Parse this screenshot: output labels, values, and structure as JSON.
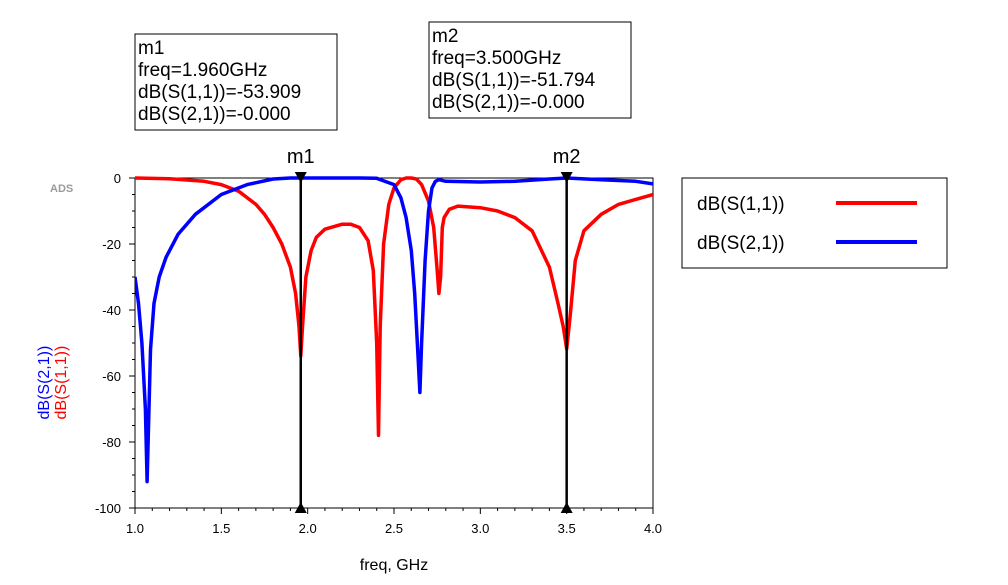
{
  "chart_data": {
    "type": "line",
    "watermark": "ADS",
    "xlabel": "freq, GHz",
    "ylabels": [
      "dB(S(2,1))",
      "dB(S(1,1))"
    ],
    "xlim": [
      1.0,
      4.0
    ],
    "ylim": [
      -100,
      0
    ],
    "x_ticks": [
      "1.0",
      "1.5",
      "2.0",
      "2.5",
      "3.0",
      "3.5",
      "4.0"
    ],
    "y_ticks": [
      "0",
      "-20",
      "-40",
      "-60",
      "-80",
      "-100"
    ],
    "colors": {
      "s11": "#ff0000",
      "s21": "#0000ff"
    },
    "series": [
      {
        "name": "dB(S(1,1))",
        "color": "#ff0000",
        "x": [
          1.0,
          1.2,
          1.4,
          1.5,
          1.6,
          1.7,
          1.75,
          1.8,
          1.85,
          1.9,
          1.93,
          1.95,
          1.96,
          1.97,
          1.99,
          2.02,
          2.05,
          2.1,
          2.2,
          2.25,
          2.3,
          2.35,
          2.38,
          2.4,
          2.41,
          2.42,
          2.44,
          2.47,
          2.5,
          2.54,
          2.57,
          2.6,
          2.63,
          2.66,
          2.7,
          2.73,
          2.75,
          2.76,
          2.77,
          2.78,
          2.79,
          2.82,
          2.87,
          3.0,
          3.1,
          3.2,
          3.3,
          3.4,
          3.45,
          3.48,
          3.5,
          3.52,
          3.55,
          3.6,
          3.7,
          3.8,
          3.9,
          4.0
        ],
        "y": [
          0,
          -0.2,
          -1,
          -2,
          -4,
          -8,
          -11,
          -15,
          -20,
          -27,
          -35,
          -45,
          -53.9,
          -45,
          -30,
          -22,
          -18,
          -15.5,
          -14,
          -14,
          -15,
          -19,
          -28,
          -50,
          -78,
          -45,
          -20,
          -8,
          -3,
          -0.5,
          0,
          0,
          -0.3,
          -2,
          -7,
          -15,
          -28,
          -35,
          -30,
          -15,
          -12,
          -9.5,
          -8.5,
          -9,
          -10,
          -12,
          -16,
          -27,
          -38,
          -45,
          -51.8,
          -42,
          -25,
          -16,
          -11,
          -8,
          -6.5,
          -5
        ]
      },
      {
        "name": "dB(S(2,1))",
        "color": "#0000ff",
        "x": [
          1.0,
          1.02,
          1.04,
          1.06,
          1.07,
          1.08,
          1.09,
          1.11,
          1.14,
          1.18,
          1.25,
          1.35,
          1.5,
          1.65,
          1.8,
          1.9,
          2.0,
          2.2,
          2.3,
          2.4,
          2.5,
          2.54,
          2.57,
          2.6,
          2.62,
          2.64,
          2.65,
          2.66,
          2.68,
          2.7,
          2.72,
          2.74,
          2.76,
          2.8,
          3.0,
          3.2,
          3.4,
          3.5,
          3.7,
          3.9,
          4.0
        ],
        "y": [
          -30,
          -38,
          -50,
          -70,
          -92,
          -72,
          -52,
          -38,
          -30,
          -24,
          -17,
          -11,
          -5,
          -2,
          -0.3,
          0,
          0,
          0,
          0,
          -0.1,
          -2,
          -6,
          -12,
          -22,
          -35,
          -55,
          -65,
          -50,
          -25,
          -10,
          -3,
          -1,
          -0.5,
          -1,
          -1.2,
          -1,
          -0.3,
          0,
          -0.5,
          -1,
          -1.8
        ]
      }
    ],
    "markers": [
      {
        "name": "m1",
        "freq_ghz": 1.96,
        "lines": [
          "m1",
          "freq=1.960GHz",
          "dB(S(1,1))=-53.909",
          "dB(S(2,1))=-0.000"
        ]
      },
      {
        "name": "m2",
        "freq_ghz": 3.5,
        "lines": [
          "m2",
          "freq=3.500GHz",
          "dB(S(1,1))=-51.794",
          "dB(S(2,1))=-0.000"
        ]
      }
    ],
    "legend": [
      {
        "label": "dB(S(1,1))",
        "color": "#ff0000"
      },
      {
        "label": "dB(S(2,1))",
        "color": "#0000ff"
      }
    ]
  }
}
